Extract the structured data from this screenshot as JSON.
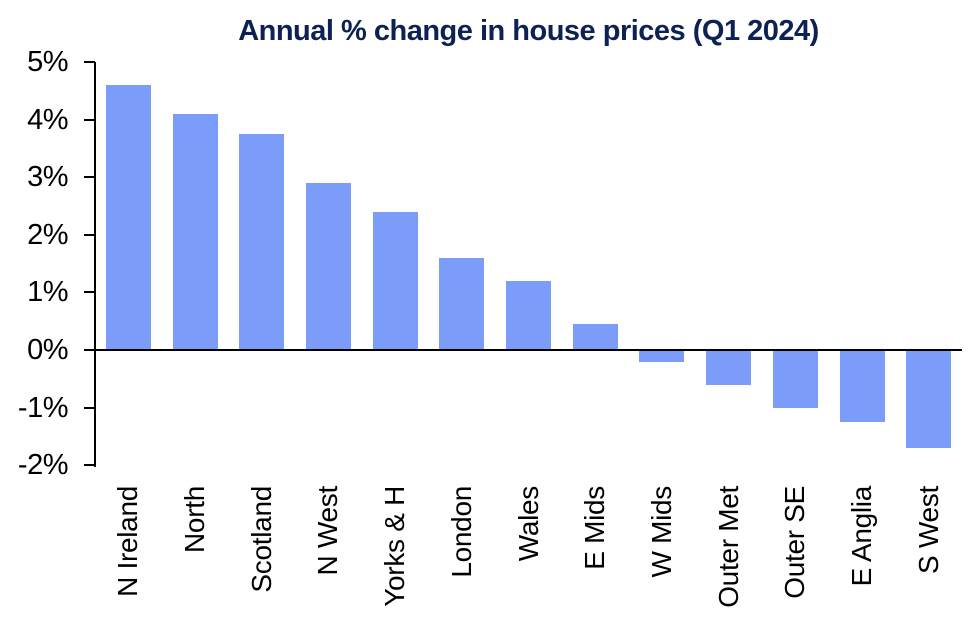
{
  "chart_data": {
    "type": "bar",
    "title": "Annual % change in house prices (Q1 2024)",
    "categories": [
      "N Ireland",
      "North",
      "Scotland",
      "N West",
      "Yorks & H",
      "London",
      "Wales",
      "E Mids",
      "W Mids",
      "Outer Met",
      "Outer SE",
      "E Anglia",
      "S West"
    ],
    "values": [
      4.6,
      4.1,
      3.75,
      2.9,
      2.4,
      1.6,
      1.2,
      0.45,
      -0.2,
      -0.6,
      -1.0,
      -1.25,
      -1.7
    ],
    "xlabel": "",
    "ylabel": "",
    "ylim": [
      -2,
      5
    ],
    "yticks": [
      {
        "value": 5,
        "label": "5%"
      },
      {
        "value": 4,
        "label": "4%"
      },
      {
        "value": 3,
        "label": "3%"
      },
      {
        "value": 2,
        "label": "2%"
      },
      {
        "value": 1,
        "label": "1%"
      },
      {
        "value": 0,
        "label": "0%"
      },
      {
        "value": -1,
        "label": "-1%"
      },
      {
        "value": -2,
        "label": "-2%"
      }
    ],
    "grid": false,
    "legend_position": "none",
    "colors": {
      "bar": "#7B9CF8",
      "title": "#0D2154",
      "axis": "#000000",
      "background": "#FFFFFF"
    }
  }
}
